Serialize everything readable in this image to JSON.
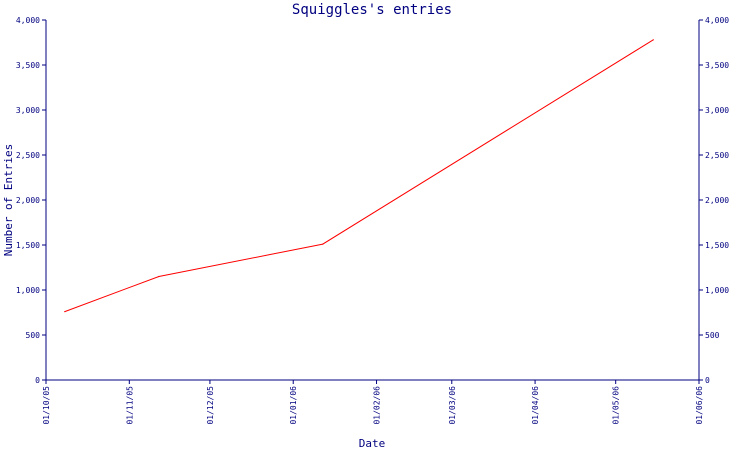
{
  "chart_data": {
    "type": "line",
    "title": "Squiggles's entries",
    "xlabel": "Date",
    "ylabel": "Number of Entries",
    "x_tick_labels": [
      "01/10/05",
      "01/11/05",
      "01/12/05",
      "01/01/06",
      "01/02/06",
      "01/03/06",
      "01/04/06",
      "01/05/06",
      "01/06/06"
    ],
    "y_tick_labels": [
      "0",
      "500",
      "1,000",
      "1,500",
      "2,000",
      "2,500",
      "3,000",
      "3,500",
      "4,000"
    ],
    "y_ticks": [
      0,
      500,
      1000,
      1500,
      2000,
      2500,
      3000,
      3500,
      4000
    ],
    "ylim": [
      0,
      4000
    ],
    "xlim": [
      "2005-10-01",
      "2006-06-01"
    ],
    "grid": false,
    "legend": "none",
    "series": [
      {
        "color": "#ff0000",
        "points": [
          {
            "x": "2005-10-08",
            "y": 760
          },
          {
            "x": "2005-11-12",
            "y": 1150
          },
          {
            "x": "2006-01-12",
            "y": 1510
          },
          {
            "x": "2006-05-15",
            "y": 3780
          }
        ]
      }
    ]
  },
  "colors": {
    "axis": "#000080",
    "line": "#ff0000",
    "background": "#ffffff"
  }
}
